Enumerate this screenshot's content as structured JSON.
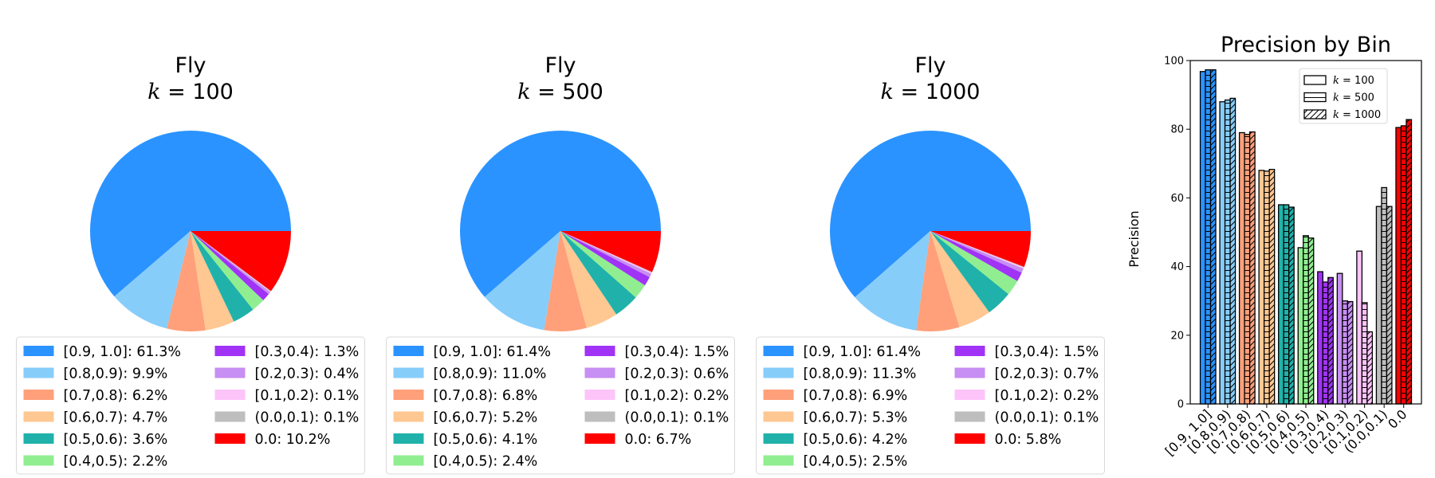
{
  "chart_data": [
    {
      "type": "pie",
      "title": "Fly",
      "subtitle": "k = 100",
      "labels": [
        "[0.9, 1.0]",
        "[0.8,0.9)",
        "[0.7,0.8)",
        "[0.6,0.7)",
        "[0.5,0.6)",
        "[0.4,0.5)",
        "[0.3,0.4)",
        "[0.2,0.3)",
        "[0.1,0.2)",
        "(0.0,0.1)",
        "0.0"
      ],
      "values": [
        61.3,
        9.9,
        6.2,
        4.7,
        3.6,
        2.2,
        1.3,
        0.4,
        0.1,
        0.1,
        10.2
      ],
      "legend": [
        "[0.9, 1.0]: 61.3%",
        "[0.8,0.9): 9.9%",
        "[0.7,0.8): 6.2%",
        "[0.6,0.7): 4.7%",
        "[0.5,0.6): 3.6%",
        "[0.4,0.5): 2.2%",
        "[0.3,0.4): 1.3%",
        "[0.2,0.3): 0.4%",
        "[0.1,0.2): 0.1%",
        "(0.0,0.1): 0.1%",
        "0.0: 10.2%"
      ]
    },
    {
      "type": "pie",
      "title": "Fly",
      "subtitle": "k = 500",
      "labels": [
        "[0.9, 1.0]",
        "[0.8,0.9)",
        "[0.7,0.8)",
        "[0.6,0.7)",
        "[0.5,0.6)",
        "[0.4,0.5)",
        "[0.3,0.4)",
        "[0.2,0.3)",
        "[0.1,0.2)",
        "(0.0,0.1)",
        "0.0"
      ],
      "values": [
        61.4,
        11.0,
        6.8,
        5.2,
        4.1,
        2.4,
        1.5,
        0.6,
        0.2,
        0.1,
        6.7
      ],
      "legend": [
        "[0.9, 1.0]: 61.4%",
        "[0.8,0.9): 11.0%",
        "[0.7,0.8): 6.8%",
        "[0.6,0.7): 5.2%",
        "[0.5,0.6): 4.1%",
        "[0.4,0.5): 2.4%",
        "[0.3,0.4): 1.5%",
        "[0.2,0.3): 0.6%",
        "[0.1,0.2): 0.2%",
        "(0.0,0.1): 0.1%",
        "0.0: 6.7%"
      ]
    },
    {
      "type": "pie",
      "title": "Fly",
      "subtitle": "k = 1000",
      "labels": [
        "[0.9, 1.0]",
        "[0.8,0.9)",
        "[0.7,0.8)",
        "[0.6,0.7)",
        "[0.5,0.6)",
        "[0.4,0.5)",
        "[0.3,0.4)",
        "[0.2,0.3)",
        "[0.1,0.2)",
        "(0.0,0.1)",
        "0.0"
      ],
      "values": [
        61.4,
        11.3,
        6.9,
        5.3,
        4.2,
        2.5,
        1.5,
        0.7,
        0.2,
        0.1,
        5.8
      ],
      "legend": [
        "[0.9, 1.0]: 61.4%",
        "[0.8,0.9): 11.3%",
        "[0.7,0.8): 6.9%",
        "[0.6,0.7): 5.3%",
        "[0.5,0.6): 4.2%",
        "[0.4,0.5): 2.5%",
        "[0.3,0.4): 1.5%",
        "[0.2,0.3): 0.7%",
        "[0.1,0.2): 0.2%",
        "(0.0,0.1): 0.1%",
        "0.0: 5.8%"
      ]
    },
    {
      "type": "bar",
      "title": "Precision by Bin",
      "xlabel": "",
      "ylabel": "Precision",
      "ylim": [
        0,
        100
      ],
      "yticks": [
        "0",
        "20",
        "40",
        "60",
        "80",
        "100"
      ],
      "categories": [
        "[0.9, 1.0]",
        "[0.8,0.9)",
        "[0.7,0.8)",
        "[0.6,0.7)",
        "[0.5,0.6)",
        "[0.4,0.5)",
        "[0.3,0.4)",
        "[0.2,0.3)",
        "[0.1,0.2)",
        "(0.0,0.1)",
        "0.0"
      ],
      "series": [
        {
          "name": "k = 100",
          "values": [
            96.8,
            88.0,
            79.0,
            68.0,
            58.0,
            45.5,
            38.5,
            38.0,
            44.5,
            57.5,
            80.5
          ]
        },
        {
          "name": "k = 500",
          "values": [
            97.3,
            88.5,
            78.5,
            67.8,
            58.0,
            49.0,
            35.5,
            30.0,
            29.5,
            63.0,
            81.0
          ]
        },
        {
          "name": "k = 1000",
          "values": [
            97.3,
            89.0,
            79.2,
            68.3,
            57.3,
            48.3,
            36.8,
            29.8,
            21.0,
            57.5,
            82.8
          ]
        }
      ],
      "legend_position": "top-right"
    }
  ],
  "colors": [
    "#2b93ff",
    "#87cdfa",
    "#ffa07a",
    "#ffc792",
    "#20b2aa",
    "#90ee90",
    "#a033f6",
    "#c78ef3",
    "#fdc4fa",
    "#bebebe",
    "#ff0000"
  ],
  "legend_label_prefix": "k",
  "legend_label_values": [
    "= 100",
    "= 500",
    "= 1000"
  ]
}
